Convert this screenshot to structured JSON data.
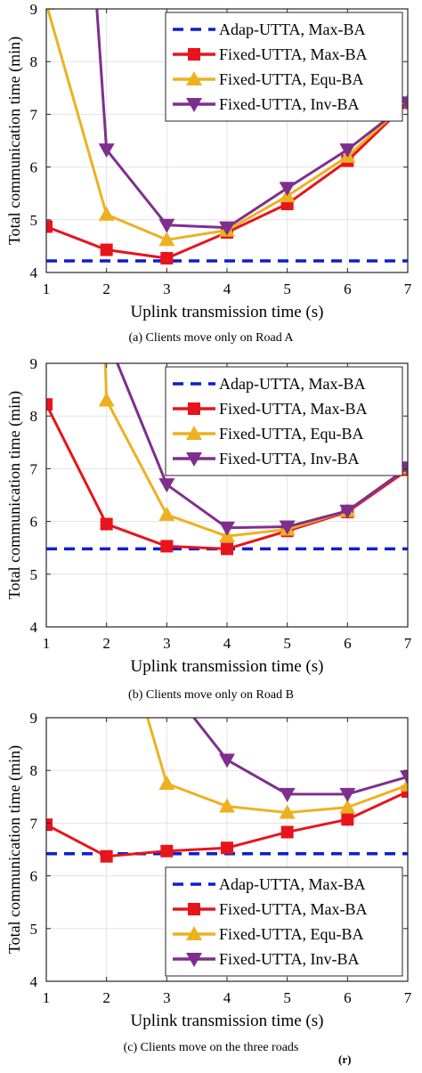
{
  "chart_data": [
    {
      "type": "line",
      "xlabel": "Uplink transmission time (s)",
      "ylabel": "Total communication time (min)",
      "xlim": [
        1,
        7
      ],
      "ylim": [
        4,
        9
      ],
      "xticks": [
        "1",
        "2",
        "3",
        "4",
        "5",
        "6",
        "7"
      ],
      "yticks": [
        "4",
        "5",
        "6",
        "7",
        "8",
        "9"
      ],
      "grid": true,
      "legend_position": "top-right",
      "caption": "(a) Clients move only on Road A",
      "x": [
        1,
        2,
        3,
        4,
        5,
        6,
        7
      ],
      "series": [
        {
          "name": "Adap-UTTA, Max-BA",
          "style": "dashed",
          "marker": "none",
          "color": "#0a1fd1",
          "values": [
            4.22,
            4.22,
            4.22,
            4.22,
            4.22,
            4.22,
            4.22
          ]
        },
        {
          "name": "Fixed-UTTA, Max-BA",
          "style": "solid",
          "marker": "square",
          "color": "#e8141c",
          "values": [
            4.87,
            4.43,
            4.27,
            4.76,
            5.3,
            6.12,
            7.22
          ]
        },
        {
          "name": "Fixed-UTTA, Equ-BA",
          "style": "solid",
          "marker": "triangle-up",
          "color": "#edb120",
          "values": [
            9.1,
            5.1,
            4.62,
            4.8,
            5.45,
            6.2,
            7.25
          ]
        },
        {
          "name": "Fixed-UTTA, Inv-BA",
          "style": "solid",
          "marker": "triangle-down",
          "color": "#7e2f8e",
          "values": [
            null,
            6.33,
            4.9,
            4.85,
            5.6,
            6.33,
            7.22
          ],
          "entry": {
            "x": 1.84,
            "y": 9.0
          }
        }
      ]
    },
    {
      "type": "line",
      "xlabel": "Uplink transmission time (s)",
      "ylabel": "Total communication time (min)",
      "xlim": [
        1,
        7
      ],
      "ylim": [
        4,
        9
      ],
      "xticks": [
        "1",
        "2",
        "3",
        "4",
        "5",
        "6",
        "7"
      ],
      "yticks": [
        "4",
        "5",
        "6",
        "7",
        "8",
        "9"
      ],
      "grid": true,
      "legend_position": "top-right",
      "caption": "(b) Clients move only on Road B",
      "x": [
        1,
        2,
        3,
        4,
        5,
        6,
        7
      ],
      "series": [
        {
          "name": "Adap-UTTA, Max-BA",
          "style": "dashed",
          "marker": "none",
          "color": "#0a1fd1",
          "values": [
            5.48,
            5.48,
            5.48,
            5.48,
            5.48,
            5.48,
            5.48
          ]
        },
        {
          "name": "Fixed-UTTA, Max-BA",
          "style": "solid",
          "marker": "square",
          "color": "#e8141c",
          "values": [
            8.22,
            5.95,
            5.53,
            5.48,
            5.82,
            6.18,
            6.98
          ]
        },
        {
          "name": "Fixed-UTTA, Equ-BA",
          "style": "solid",
          "marker": "triangle-up",
          "color": "#edb120",
          "values": [
            null,
            8.3,
            6.13,
            5.72,
            5.85,
            6.2,
            7.02
          ],
          "entry": {
            "x": 1.98,
            "y": 9.0
          }
        },
        {
          "name": "Fixed-UTTA, Inv-BA",
          "style": "solid",
          "marker": "triangle-down",
          "color": "#7e2f8e",
          "values": [
            null,
            null,
            6.7,
            5.88,
            5.9,
            6.2,
            7.02
          ],
          "entry": {
            "x": 2.18,
            "y": 9.0
          }
        }
      ]
    },
    {
      "type": "line",
      "xlabel": "Uplink transmission time (s)",
      "ylabel": "Total communication time (min)",
      "xlim": [
        1,
        7
      ],
      "ylim": [
        4,
        9
      ],
      "xticks": [
        "1",
        "2",
        "3",
        "4",
        "5",
        "6",
        "7"
      ],
      "yticks": [
        "4",
        "5",
        "6",
        "7",
        "8",
        "9"
      ],
      "grid": true,
      "legend_position": "bottom-right",
      "caption": "(c) Clients move on the three roads",
      "x": [
        1,
        2,
        3,
        4,
        5,
        6,
        7
      ],
      "series": [
        {
          "name": "Adap-UTTA, Max-BA",
          "style": "dashed",
          "marker": "none",
          "color": "#0a1fd1",
          "values": [
            6.42,
            6.42,
            6.42,
            6.42,
            6.42,
            6.42,
            6.42
          ]
        },
        {
          "name": "Fixed-UTTA, Max-BA",
          "style": "solid",
          "marker": "square",
          "color": "#e8141c",
          "values": [
            6.97,
            6.37,
            6.47,
            6.53,
            6.83,
            7.07,
            7.6
          ]
        },
        {
          "name": "Fixed-UTTA, Equ-BA",
          "style": "solid",
          "marker": "triangle-up",
          "color": "#edb120",
          "values": [
            null,
            null,
            7.75,
            7.32,
            7.2,
            7.3,
            7.72
          ],
          "entry": {
            "x": 2.68,
            "y": 9.0
          }
        },
        {
          "name": "Fixed-UTTA, Inv-BA",
          "style": "solid",
          "marker": "triangle-down",
          "color": "#7e2f8e",
          "values": [
            null,
            null,
            null,
            8.2,
            7.55,
            7.55,
            7.88
          ],
          "entry": {
            "x": 3.45,
            "y": 9.0
          }
        }
      ]
    }
  ],
  "corner_mark": "(r)"
}
